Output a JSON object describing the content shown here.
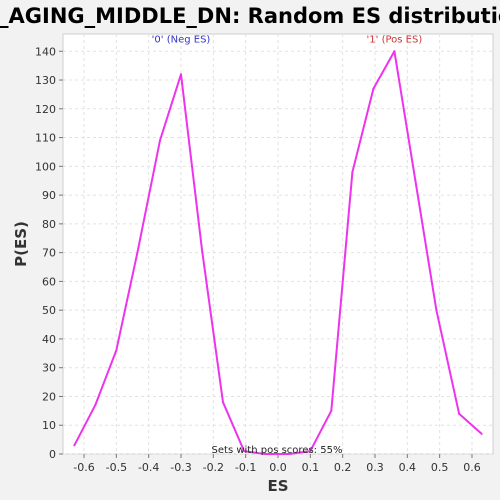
{
  "chart_data": {
    "type": "line",
    "title": "LY_AGING_MIDDLE_DN: Random ES distribution",
    "xlabel": "ES",
    "ylabel": "P(ES)",
    "xlim": [
      -0.665,
      0.665
    ],
    "ylim": [
      0,
      146
    ],
    "x_ticks": [
      -0.6,
      -0.5,
      -0.4,
      -0.3,
      -0.2,
      -0.1,
      0.0,
      0.1,
      0.2,
      0.3,
      0.4,
      0.5,
      0.6
    ],
    "x_tick_labels": [
      "-0.6",
      "-0.5",
      "-0.4",
      "-0.3",
      "-0.2",
      "-0.1",
      "0.0",
      "0.1",
      "0.2",
      "0.3",
      "0.4",
      "0.5",
      "0.6"
    ],
    "y_ticks": [
      0,
      10,
      20,
      30,
      40,
      50,
      60,
      70,
      80,
      90,
      100,
      110,
      120,
      130,
      140
    ],
    "y_tick_labels": [
      "0",
      "10",
      "20",
      "30",
      "40",
      "50",
      "60",
      "70",
      "80",
      "90",
      "100",
      "110",
      "120",
      "130",
      "140"
    ],
    "grid": true,
    "series": [
      {
        "color": "#ee33ee",
        "x": [
          -0.63,
          -0.565,
          -0.5,
          -0.435,
          -0.365,
          -0.3,
          -0.235,
          -0.17,
          -0.105,
          -0.04,
          0.035,
          0.1,
          0.165,
          0.23,
          0.295,
          0.36,
          0.425,
          0.49,
          0.56,
          0.63
        ],
        "y": [
          3,
          17,
          36,
          70,
          109,
          132,
          71,
          18,
          1,
          0,
          0,
          1,
          15,
          98,
          127,
          140,
          95,
          50,
          14,
          7
        ]
      }
    ],
    "annotations": [
      {
        "text": "'0' (Neg ES)",
        "x": -0.3,
        "y": 143,
        "color": "#3333cc"
      },
      {
        "text": "'1' (Pos ES)",
        "x": 0.36,
        "y": 143,
        "color": "#cc3333"
      }
    ],
    "footnote": "Sets with pos scores: 55%"
  }
}
